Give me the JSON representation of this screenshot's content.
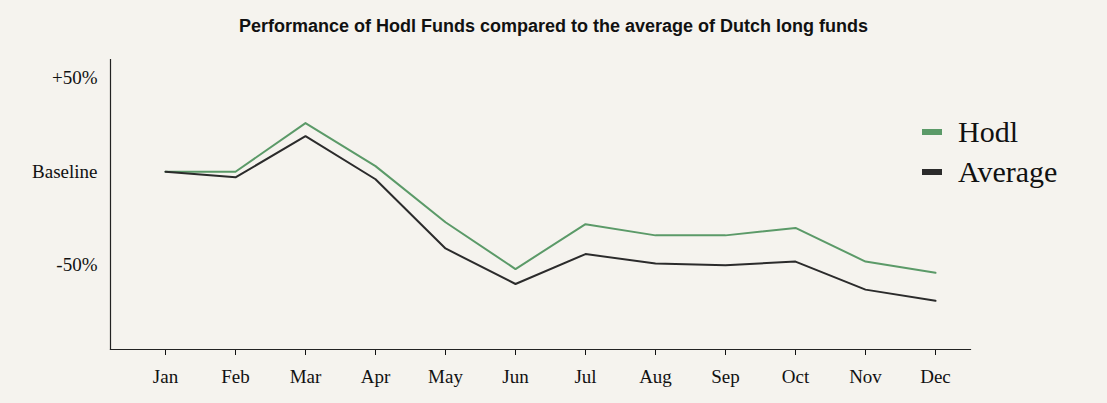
{
  "chart_data": {
    "type": "line",
    "title": "Performance of Hodl Funds compared to the average of Dutch long funds",
    "categories": [
      "Jan",
      "Feb",
      "Mar",
      "Apr",
      "May",
      "Jun",
      "Jul",
      "Aug",
      "Sep",
      "Oct",
      "Nov",
      "Dec"
    ],
    "series": [
      {
        "name": "Hodl",
        "color": "#5b9a68",
        "values": [
          0,
          0,
          26,
          3,
          -27,
          -52,
          -28,
          -34,
          -34,
          -30,
          -48,
          -54
        ]
      },
      {
        "name": "Average",
        "color": "#2b2b2b",
        "values": [
          0,
          -3,
          19,
          -4,
          -41,
          -60,
          -44,
          -49,
          -50,
          -48,
          -63,
          -69
        ]
      }
    ],
    "ylim": [
      -95,
      60
    ],
    "yticks": [
      {
        "value": 50,
        "label": "+50%"
      },
      {
        "value": 0,
        "label": "Baseline"
      },
      {
        "value": -50,
        "label": "-50%"
      }
    ],
    "legend": "right"
  }
}
